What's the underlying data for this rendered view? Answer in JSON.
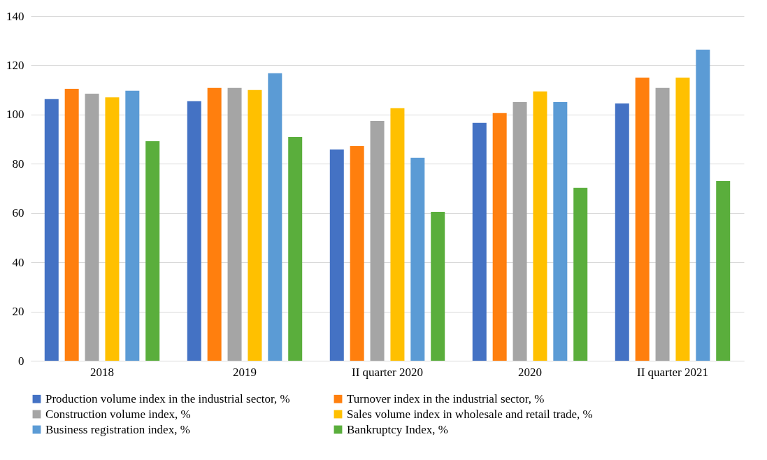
{
  "chart_data": {
    "type": "bar",
    "categories": [
      "2018",
      "2019",
      "II quarter 2020",
      "2020",
      "II quarter 2021"
    ],
    "series": [
      {
        "name": "Production volume index in the industrial sector, %",
        "color": "#4472c4",
        "values": [
          106.3,
          105.4,
          85.8,
          96.6,
          104.5
        ]
      },
      {
        "name": "Turnover index in the industrial sector, %",
        "color": "#ff7f0e",
        "values": [
          110.5,
          110.8,
          87.2,
          100.6,
          115
        ]
      },
      {
        "name": "Construction volume index, %",
        "color": "#a5a5a5",
        "values": [
          108.5,
          110.8,
          97.4,
          105.1,
          110.8
        ]
      },
      {
        "name": "Sales volume index in wholesale and retail trade, %",
        "color": "#ffc000",
        "values": [
          107,
          110,
          102.6,
          109.4,
          115
        ]
      },
      {
        "name": "Business registration index, %",
        "color": "#5b9bd5",
        "values": [
          109.7,
          116.8,
          82.4,
          105.1,
          126.4
        ]
      },
      {
        "name": "Bankruptcy Index, %",
        "color": "#5aae3c",
        "values": [
          89.2,
          90.9,
          60.5,
          70.2,
          73
        ]
      }
    ],
    "ylim": [
      0,
      140
    ],
    "yticks": [
      0,
      20,
      40,
      60,
      80,
      100,
      120,
      140
    ],
    "grid": "y",
    "legend": "bottom"
  }
}
